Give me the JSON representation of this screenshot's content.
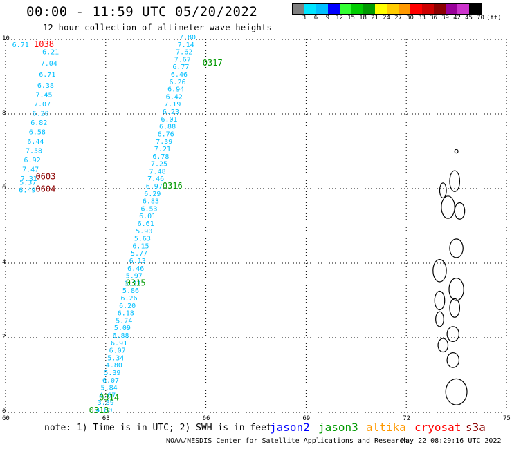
{
  "header": {
    "title": "00:00 - 11:59 UTC 05/20/2022",
    "subtitle": "12 hour collection of altimeter wave heights"
  },
  "legend": {
    "colors": [
      "#7f7f7f",
      "#00e5ff",
      "#00bfff",
      "#0000ff",
      "#33ff33",
      "#00cc00",
      "#009900",
      "#ffff00",
      "#ffcc00",
      "#ff9900",
      "#ff0000",
      "#cc0000",
      "#8b0000",
      "#990099",
      "#cc33cc",
      "#000000"
    ],
    "labels": [
      "",
      "3",
      "6",
      "9",
      "12",
      "15",
      "18",
      "21",
      "24",
      "27",
      "30",
      "33",
      "36",
      "39",
      "42",
      "45",
      "70",
      "(ft)"
    ]
  },
  "axes": {
    "x_ticks": [
      "60",
      "63",
      "66",
      "69",
      "72",
      "75"
    ],
    "y_ticks": [
      "0",
      "2",
      "4",
      "6",
      "8",
      "10"
    ],
    "x_range": [
      60,
      75
    ],
    "y_range": [
      0,
      10
    ],
    "grid": "dotted"
  },
  "chart_data": {
    "type": "scatter",
    "tracks": [
      {
        "id": "A",
        "color": "#00bfff",
        "points": [
          {
            "lon": 60.2,
            "lat": 9.8,
            "v": "6.71"
          },
          {
            "lon": 61.1,
            "lat": 9.6,
            "v": "6.21"
          },
          {
            "lon": 61.05,
            "lat": 9.3,
            "v": "7.04"
          },
          {
            "lon": 61.0,
            "lat": 9.0,
            "v": "6.71"
          },
          {
            "lon": 60.95,
            "lat": 8.7,
            "v": "6.38"
          },
          {
            "lon": 60.9,
            "lat": 8.45,
            "v": "7.45"
          },
          {
            "lon": 60.85,
            "lat": 8.2,
            "v": "7.07"
          },
          {
            "lon": 60.8,
            "lat": 7.95,
            "v": "6.20"
          },
          {
            "lon": 60.75,
            "lat": 7.7,
            "v": "6.82"
          },
          {
            "lon": 60.7,
            "lat": 7.45,
            "v": "6.58"
          },
          {
            "lon": 60.65,
            "lat": 7.2,
            "v": "6.44"
          },
          {
            "lon": 60.6,
            "lat": 6.95,
            "v": "7.58"
          },
          {
            "lon": 60.55,
            "lat": 6.7,
            "v": "6.92"
          },
          {
            "lon": 60.5,
            "lat": 6.45,
            "v": "7.47"
          },
          {
            "lon": 60.45,
            "lat": 6.2,
            "v": "7.31"
          },
          {
            "lon": 60.42,
            "lat": 6.1,
            "v": "5.37"
          },
          {
            "lon": 60.4,
            "lat": 5.9,
            "v": "6.49"
          }
        ]
      },
      {
        "id": "B",
        "color": "#00bfff",
        "points": [
          {
            "lon": 65.2,
            "lat": 10.0,
            "v": "7.80"
          },
          {
            "lon": 65.15,
            "lat": 9.8,
            "v": "7.14"
          },
          {
            "lon": 65.1,
            "lat": 9.6,
            "v": "7.62"
          },
          {
            "lon": 65.05,
            "lat": 9.4,
            "v": "7.67"
          },
          {
            "lon": 65.0,
            "lat": 9.2,
            "v": "6.77"
          },
          {
            "lon": 64.95,
            "lat": 9.0,
            "v": "6.46"
          },
          {
            "lon": 64.9,
            "lat": 8.8,
            "v": "6.26"
          },
          {
            "lon": 64.85,
            "lat": 8.6,
            "v": "6.94"
          },
          {
            "lon": 64.8,
            "lat": 8.4,
            "v": "6.42"
          },
          {
            "lon": 64.75,
            "lat": 8.2,
            "v": "7.19"
          },
          {
            "lon": 64.7,
            "lat": 8.0,
            "v": "6.23"
          },
          {
            "lon": 64.65,
            "lat": 7.8,
            "v": "6.01"
          },
          {
            "lon": 64.6,
            "lat": 7.6,
            "v": "6.88"
          },
          {
            "lon": 64.55,
            "lat": 7.4,
            "v": "6.76"
          },
          {
            "lon": 64.5,
            "lat": 7.2,
            "v": "7.39"
          },
          {
            "lon": 64.45,
            "lat": 7.0,
            "v": "7.21"
          },
          {
            "lon": 64.4,
            "lat": 6.8,
            "v": "6.78"
          },
          {
            "lon": 64.35,
            "lat": 6.6,
            "v": "7.25"
          },
          {
            "lon": 64.3,
            "lat": 6.4,
            "v": "7.48"
          },
          {
            "lon": 64.25,
            "lat": 6.2,
            "v": "7.46"
          },
          {
            "lon": 64.2,
            "lat": 6.0,
            "v": "6.97"
          },
          {
            "lon": 64.15,
            "lat": 5.8,
            "v": "6.29"
          },
          {
            "lon": 64.1,
            "lat": 5.6,
            "v": "6.83"
          },
          {
            "lon": 64.05,
            "lat": 5.4,
            "v": "6.53"
          },
          {
            "lon": 64.0,
            "lat": 5.2,
            "v": "6.01"
          },
          {
            "lon": 63.95,
            "lat": 5.0,
            "v": "6.61"
          },
          {
            "lon": 63.9,
            "lat": 4.8,
            "v": "5.90"
          },
          {
            "lon": 63.85,
            "lat": 4.6,
            "v": "5.63"
          },
          {
            "lon": 63.8,
            "lat": 4.4,
            "v": "6.15"
          },
          {
            "lon": 63.75,
            "lat": 4.2,
            "v": "5.77"
          },
          {
            "lon": 63.7,
            "lat": 4.0,
            "v": "6.13"
          },
          {
            "lon": 63.65,
            "lat": 3.8,
            "v": "6.46"
          },
          {
            "lon": 63.6,
            "lat": 3.6,
            "v": "5.97"
          },
          {
            "lon": 63.55,
            "lat": 3.4,
            "v": "6.23"
          },
          {
            "lon": 63.5,
            "lat": 3.2,
            "v": "5.86"
          },
          {
            "lon": 63.45,
            "lat": 3.0,
            "v": "6.26"
          },
          {
            "lon": 63.4,
            "lat": 2.8,
            "v": "6.20"
          },
          {
            "lon": 63.35,
            "lat": 2.6,
            "v": "6.18"
          },
          {
            "lon": 63.3,
            "lat": 2.4,
            "v": "5.74"
          },
          {
            "lon": 63.25,
            "lat": 2.2,
            "v": "5.09"
          },
          {
            "lon": 63.2,
            "lat": 2.0,
            "v": "6.88"
          },
          {
            "lon": 63.15,
            "lat": 1.8,
            "v": "6.91"
          },
          {
            "lon": 63.1,
            "lat": 1.6,
            "v": "6.07"
          },
          {
            "lon": 63.05,
            "lat": 1.4,
            "v": "5.34"
          },
          {
            "lon": 63.0,
            "lat": 1.2,
            "v": "4.80"
          },
          {
            "lon": 62.95,
            "lat": 1.0,
            "v": "5.39"
          },
          {
            "lon": 62.9,
            "lat": 0.8,
            "v": "6.07"
          },
          {
            "lon": 62.85,
            "lat": 0.6,
            "v": "5.84"
          },
          {
            "lon": 62.8,
            "lat": 0.4,
            "v": "4.67"
          },
          {
            "lon": 62.75,
            "lat": 0.2,
            "v": "3.89"
          },
          {
            "lon": 62.7,
            "lat": 0.0,
            "v": "4.80"
          }
        ]
      }
    ],
    "time_labels": [
      {
        "lon": 60.85,
        "lat": 9.8,
        "text": "1038",
        "color": "#ff0000"
      },
      {
        "lon": 60.9,
        "lat": 6.25,
        "text": "0603",
        "color": "#8b0000"
      },
      {
        "lon": 60.9,
        "lat": 5.92,
        "text": "0604",
        "color": "#8b0000"
      },
      {
        "lon": 65.9,
        "lat": 9.3,
        "text": "0317",
        "color": "#009900"
      },
      {
        "lon": 64.7,
        "lat": 6.0,
        "text": "0316",
        "color": "#009900"
      },
      {
        "lon": 63.6,
        "lat": 3.4,
        "text": "0315",
        "color": "#009900"
      },
      {
        "lon": 62.8,
        "lat": 0.32,
        "text": "0314",
        "color": "#009900"
      },
      {
        "lon": 62.5,
        "lat": -0.02,
        "text": "0313",
        "color": "#009900"
      }
    ]
  },
  "footer": {
    "note": "note: 1) Time is in UTC; 2) SWH is in feet",
    "satellites": [
      {
        "name": "jason2",
        "color": "#0000ff"
      },
      {
        "name": "jason3",
        "color": "#009900"
      },
      {
        "name": "altika",
        "color": "#ff9900"
      },
      {
        "name": "cryosat",
        "color": "#ff0000"
      },
      {
        "name": "s3a",
        "color": "#8b0000"
      }
    ],
    "credit": "NOAA/NESDIS Center for Satellite Applications and Research",
    "timestamp": "May 22 08:29:16 UTC 2022"
  }
}
